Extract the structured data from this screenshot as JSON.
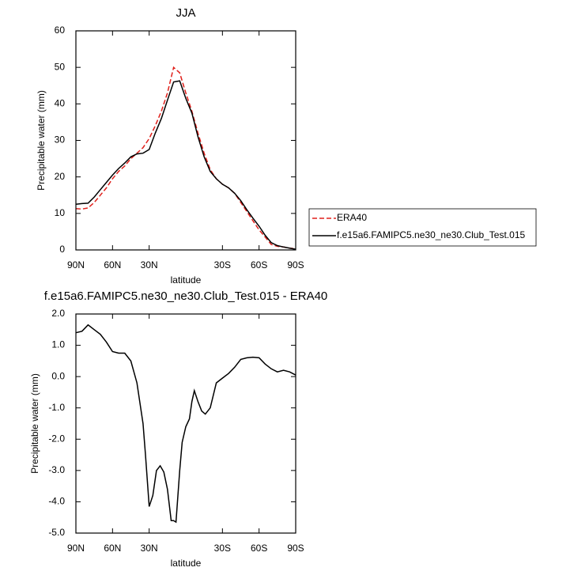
{
  "chart_data": [
    {
      "type": "line",
      "title": "JJA",
      "x_label": "latitude",
      "y_label": "Precipitable water (mm)",
      "x": [
        90,
        85,
        80,
        75,
        70,
        65,
        60,
        55,
        50,
        45,
        40,
        35,
        30,
        25,
        20,
        15,
        10,
        5,
        0,
        -5,
        -10,
        -15,
        -20,
        -25,
        -30,
        -35,
        -40,
        -45,
        -50,
        -55,
        -60,
        -65,
        -70,
        -75,
        -80,
        -85,
        -90
      ],
      "series": [
        {
          "name": "ERA40",
          "color": "#e0201b",
          "dash": "dashed",
          "values": [
            11.3,
            11.2,
            11.5,
            13,
            15,
            17,
            19.5,
            21.5,
            23,
            25,
            26.5,
            28,
            30.5,
            34,
            38,
            43,
            50,
            48.5,
            43,
            38,
            32,
            26.5,
            22,
            19.5,
            18,
            17,
            15.5,
            13,
            10.5,
            8,
            5.5,
            3.5,
            1.5,
            1,
            0.8,
            0.5,
            0.3
          ]
        },
        {
          "name": "f.e15a6.FAMIPC5.ne30_ne30.Club_Test.015",
          "color": "#000000",
          "dash": "solid",
          "values": [
            12.5,
            12.7,
            12.8,
            14.5,
            16.5,
            18.5,
            20.5,
            22.3,
            23.8,
            25.5,
            26.3,
            26.5,
            27.5,
            32,
            36,
            41,
            46,
            46.3,
            41.5,
            37.5,
            31,
            25.5,
            21.5,
            19.5,
            18,
            17,
            15.5,
            13.5,
            11,
            8.7,
            6.5,
            4,
            2,
            1.2,
            0.8,
            0.5,
            0.2
          ]
        }
      ],
      "xlim": [
        90,
        -90
      ],
      "xticks": [
        {
          "value": 90,
          "label": "90N"
        },
        {
          "value": 60,
          "label": "60N"
        },
        {
          "value": 30,
          "label": "30N"
        },
        {
          "value": -30,
          "label": "30S"
        },
        {
          "value": -60,
          "label": "60S"
        },
        {
          "value": -90,
          "label": "90S"
        }
      ],
      "ylim": [
        0,
        60
      ],
      "yticks": [
        0,
        10,
        20,
        30,
        40,
        50,
        60
      ],
      "legend": "right"
    },
    {
      "type": "line",
      "title": "f.e15a6.FAMIPC5.ne30_ne30.Club_Test.015 - ERA40",
      "x_label": "latitude",
      "y_label": "Precipitable water (mm)",
      "x": [
        90,
        85,
        80,
        75,
        70,
        65,
        60,
        55,
        50,
        45,
        40,
        35,
        33,
        30,
        27,
        24,
        21,
        18,
        15,
        12,
        10,
        8,
        5,
        3,
        0,
        -3,
        -5,
        -7,
        -10,
        -13,
        -16,
        -20,
        -25,
        -30,
        -35,
        -40,
        -45,
        -50,
        -55,
        -60,
        -65,
        -70,
        -75,
        -80,
        -85,
        -90
      ],
      "series": [
        {
          "color": "#000000",
          "dash": "solid",
          "values": [
            1.4,
            1.45,
            1.65,
            1.5,
            1.35,
            1.1,
            0.8,
            0.75,
            0.75,
            0.5,
            -0.2,
            -1.5,
            -2.5,
            -4.15,
            -3.8,
            -3.0,
            -2.85,
            -3.05,
            -3.6,
            -4.6,
            -4.6,
            -4.65,
            -3.0,
            -2.1,
            -1.6,
            -1.35,
            -0.8,
            -0.45,
            -0.8,
            -1.1,
            -1.2,
            -1.0,
            -0.2,
            -0.05,
            0.1,
            0.3,
            0.55,
            0.6,
            0.62,
            0.6,
            0.4,
            0.25,
            0.15,
            0.2,
            0.15,
            0.05
          ]
        }
      ],
      "xlim": [
        90,
        -90
      ],
      "xticks": [
        {
          "value": 90,
          "label": "90N"
        },
        {
          "value": 60,
          "label": "60N"
        },
        {
          "value": 30,
          "label": "30N"
        },
        {
          "value": -30,
          "label": "30S"
        },
        {
          "value": -60,
          "label": "60S"
        },
        {
          "value": -90,
          "label": "90S"
        }
      ],
      "ylim": [
        -5,
        2
      ],
      "yticks": [
        {
          "value": -5,
          "label": "-5.0"
        },
        {
          "value": -4,
          "label": "-4.0"
        },
        {
          "value": -3,
          "label": "-3.0"
        },
        {
          "value": -2,
          "label": "-2.0"
        },
        {
          "value": -1,
          "label": "-1.0"
        },
        {
          "value": 0,
          "label": "0.0"
        },
        {
          "value": 1,
          "label": "1.0"
        },
        {
          "value": 2,
          "label": "2.0"
        }
      ]
    }
  ]
}
